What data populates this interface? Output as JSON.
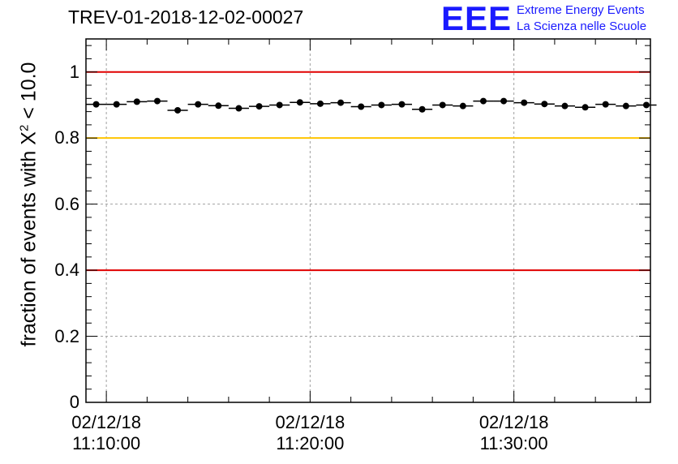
{
  "title": "TREV-01-2018-12-02-00027",
  "logo": {
    "mark": "EEE",
    "line1": "Extreme Energy Events",
    "line2": "La Scienza nelle Scuole",
    "color": "#1a1aff"
  },
  "chart_data": {
    "type": "scatter",
    "title": "TREV-01-2018-12-02-00027",
    "ylabel_prefix": "fraction of events with X",
    "ylabel_sup": "2",
    "ylabel_suffix": " < 10.0",
    "xlabel": "",
    "ylim": [
      0,
      1.1
    ],
    "yticks": [
      "0",
      "0.2",
      "0.4",
      "0.6",
      "0.8",
      "1"
    ],
    "xticks": [
      {
        "date": "02/12/18",
        "time": "11:10:00"
      },
      {
        "date": "02/12/18",
        "time": "11:20:00"
      },
      {
        "date": "02/12/18",
        "time": "11:30:00"
      }
    ],
    "reference_lines": [
      {
        "y": 1.0,
        "color": "#e00000"
      },
      {
        "y": 0.8,
        "color": "#ffc400"
      },
      {
        "y": 0.4,
        "color": "#e00000"
      }
    ],
    "grid": true,
    "x_start_min": 0,
    "x_end_min": 27.7,
    "bin_width_min": 1,
    "series": [
      {
        "name": "fraction",
        "x": [
          0.5,
          1.5,
          2.5,
          3.5,
          4.5,
          5.5,
          6.5,
          7.5,
          8.5,
          9.5,
          10.5,
          11.5,
          12.5,
          13.5,
          14.5,
          15.5,
          16.5,
          17.5,
          18.5,
          19.5,
          20.5,
          21.5,
          22.5,
          23.5,
          24.5,
          25.5,
          26.5,
          27.5
        ],
        "values": [
          0.902,
          0.902,
          0.91,
          0.912,
          0.884,
          0.902,
          0.898,
          0.89,
          0.896,
          0.9,
          0.908,
          0.904,
          0.907,
          0.895,
          0.9,
          0.902,
          0.887,
          0.9,
          0.897,
          0.912,
          0.912,
          0.907,
          0.903,
          0.897,
          0.893,
          0.902,
          0.897,
          0.9
        ]
      }
    ]
  }
}
